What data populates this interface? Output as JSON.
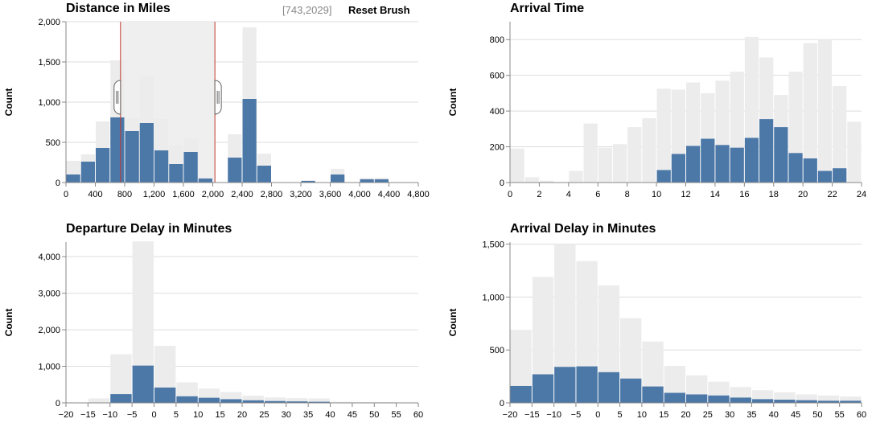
{
  "brush": {
    "range_text": "[743,2029]",
    "reset_label": "Reset Brush",
    "selection": [
      743,
      2029
    ]
  },
  "colors": {
    "background_bar": "#ececec",
    "selected_bar": "#4c78a8",
    "brush_fill": "#efefef",
    "brush_edge": "#c0392b",
    "grid": "#dddddd",
    "axis": "#888888"
  },
  "chart_data": [
    {
      "id": "distance",
      "type": "bar",
      "title": "Distance in Miles",
      "xlabel": "",
      "ylabel": "Count",
      "xlim": [
        0,
        4800
      ],
      "ylim": [
        0,
        2000
      ],
      "bin_width": 200,
      "x_ticks": [
        0,
        400,
        800,
        1200,
        1600,
        2000,
        2400,
        2800,
        3200,
        3600,
        4000,
        4400,
        4800
      ],
      "x_tick_labels": [
        "0",
        "400",
        "800",
        "1,200",
        "1,600",
        "2,000",
        "2,400",
        "2,800",
        "3,200",
        "3,600",
        "4,000",
        "4,400",
        "4,800"
      ],
      "y_ticks": [
        0,
        500,
        1000,
        1500,
        2000
      ],
      "y_tick_labels": [
        "0",
        "500",
        "1,000",
        "1,500",
        "2,000"
      ],
      "grid": true,
      "bins": [
        0,
        200,
        400,
        600,
        800,
        1000,
        1200,
        1400,
        1600,
        1800,
        2000,
        2200,
        2400,
        2600,
        3000,
        3200,
        3400,
        3600,
        4000,
        4200
      ],
      "all": [
        270,
        350,
        760,
        1520,
        800,
        1320,
        790,
        460,
        550,
        70,
        0,
        600,
        1930,
        360,
        0,
        30,
        0,
        170,
        60,
        60
      ],
      "selected": [
        100,
        260,
        430,
        810,
        640,
        740,
        400,
        230,
        380,
        50,
        0,
        310,
        1040,
        210,
        0,
        20,
        0,
        100,
        40,
        40
      ]
    },
    {
      "id": "arrival",
      "type": "bar",
      "title": "Arrival Time",
      "xlabel": "",
      "ylabel": "Count",
      "xlim": [
        0,
        24
      ],
      "ylim": [
        0,
        900
      ],
      "bin_width": 1,
      "x_ticks": [
        0,
        2,
        4,
        6,
        8,
        10,
        12,
        14,
        16,
        18,
        20,
        22,
        24
      ],
      "x_tick_labels": [
        "0",
        "2",
        "4",
        "6",
        "8",
        "10",
        "12",
        "14",
        "16",
        "18",
        "20",
        "22",
        "24"
      ],
      "y_ticks": [
        0,
        200,
        400,
        600,
        800
      ],
      "y_tick_labels": [
        "0",
        "200",
        "400",
        "600",
        "800"
      ],
      "grid": true,
      "bins": [
        0,
        1,
        2,
        3,
        4,
        5,
        6,
        7,
        8,
        9,
        10,
        11,
        12,
        13,
        14,
        15,
        16,
        17,
        18,
        19,
        20,
        21,
        22,
        23
      ],
      "all": [
        190,
        30,
        10,
        0,
        65,
        330,
        195,
        215,
        310,
        360,
        525,
        520,
        560,
        500,
        570,
        620,
        815,
        700,
        490,
        620,
        780,
        800,
        540,
        340
      ],
      "selected": [
        0,
        0,
        0,
        0,
        0,
        0,
        0,
        0,
        0,
        0,
        70,
        160,
        205,
        245,
        210,
        195,
        250,
        355,
        310,
        165,
        135,
        65,
        80,
        0
      ]
    },
    {
      "id": "depdelay",
      "type": "bar",
      "title": "Departure Delay in Minutes",
      "xlabel": "",
      "ylabel": "Count",
      "xlim": [
        -20,
        60
      ],
      "ylim": [
        0,
        4400
      ],
      "bin_width": 5,
      "x_ticks": [
        -20,
        -15,
        -10,
        -5,
        0,
        5,
        10,
        15,
        20,
        25,
        30,
        35,
        40,
        45,
        50,
        55,
        60
      ],
      "x_tick_labels": [
        "−20",
        "−15",
        "−10",
        "−5",
        "0",
        "5",
        "10",
        "15",
        "20",
        "25",
        "30",
        "35",
        "40",
        "45",
        "50",
        "55",
        "60"
      ],
      "y_ticks": [
        0,
        1000,
        2000,
        3000,
        4000
      ],
      "y_tick_labels": [
        "0",
        "1,000",
        "2,000",
        "3,000",
        "4,000"
      ],
      "grid": true,
      "bins": [
        -15,
        -10,
        -5,
        0,
        5,
        10,
        15,
        20,
        25,
        30,
        35,
        40,
        45,
        50,
        55
      ],
      "all": [
        120,
        1330,
        4420,
        1560,
        560,
        390,
        300,
        200,
        150,
        130,
        120,
        30,
        20,
        20,
        10
      ],
      "selected": [
        0,
        240,
        1020,
        420,
        180,
        140,
        100,
        70,
        50,
        40,
        30,
        0,
        0,
        0,
        0
      ]
    },
    {
      "id": "arrdelay",
      "type": "bar",
      "title": "Arrival Delay in Minutes",
      "xlabel": "",
      "ylabel": "Count",
      "xlim": [
        -20,
        60
      ],
      "ylim": [
        0,
        1520
      ],
      "bin_width": 5,
      "x_ticks": [
        -20,
        -15,
        -10,
        -5,
        0,
        5,
        10,
        15,
        20,
        25,
        30,
        35,
        40,
        45,
        50,
        55,
        60
      ],
      "x_tick_labels": [
        "−20",
        "−15",
        "−10",
        "−5",
        "0",
        "5",
        "10",
        "15",
        "20",
        "25",
        "30",
        "35",
        "40",
        "45",
        "50",
        "55",
        "60"
      ],
      "y_ticks": [
        0,
        500,
        1000,
        1500
      ],
      "y_tick_labels": [
        "0",
        "500",
        "1,000",
        "1,500"
      ],
      "grid": true,
      "bins": [
        -20,
        -15,
        -10,
        -5,
        0,
        5,
        10,
        15,
        20,
        25,
        30,
        35,
        40,
        45,
        50,
        55
      ],
      "all": [
        690,
        1190,
        1500,
        1340,
        1110,
        800,
        580,
        350,
        260,
        200,
        150,
        120,
        100,
        80,
        70,
        60
      ],
      "selected": [
        160,
        270,
        340,
        345,
        290,
        230,
        155,
        95,
        80,
        70,
        50,
        35,
        30,
        25,
        20,
        20
      ]
    }
  ]
}
